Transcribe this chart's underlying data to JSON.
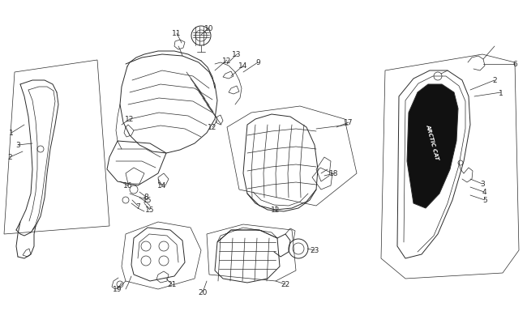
{
  "bg_color": "#ffffff",
  "line_color": "#2a2a2a",
  "label_color": "#1a1a1a",
  "fig_width": 6.5,
  "fig_height": 4.06,
  "dpi": 100
}
